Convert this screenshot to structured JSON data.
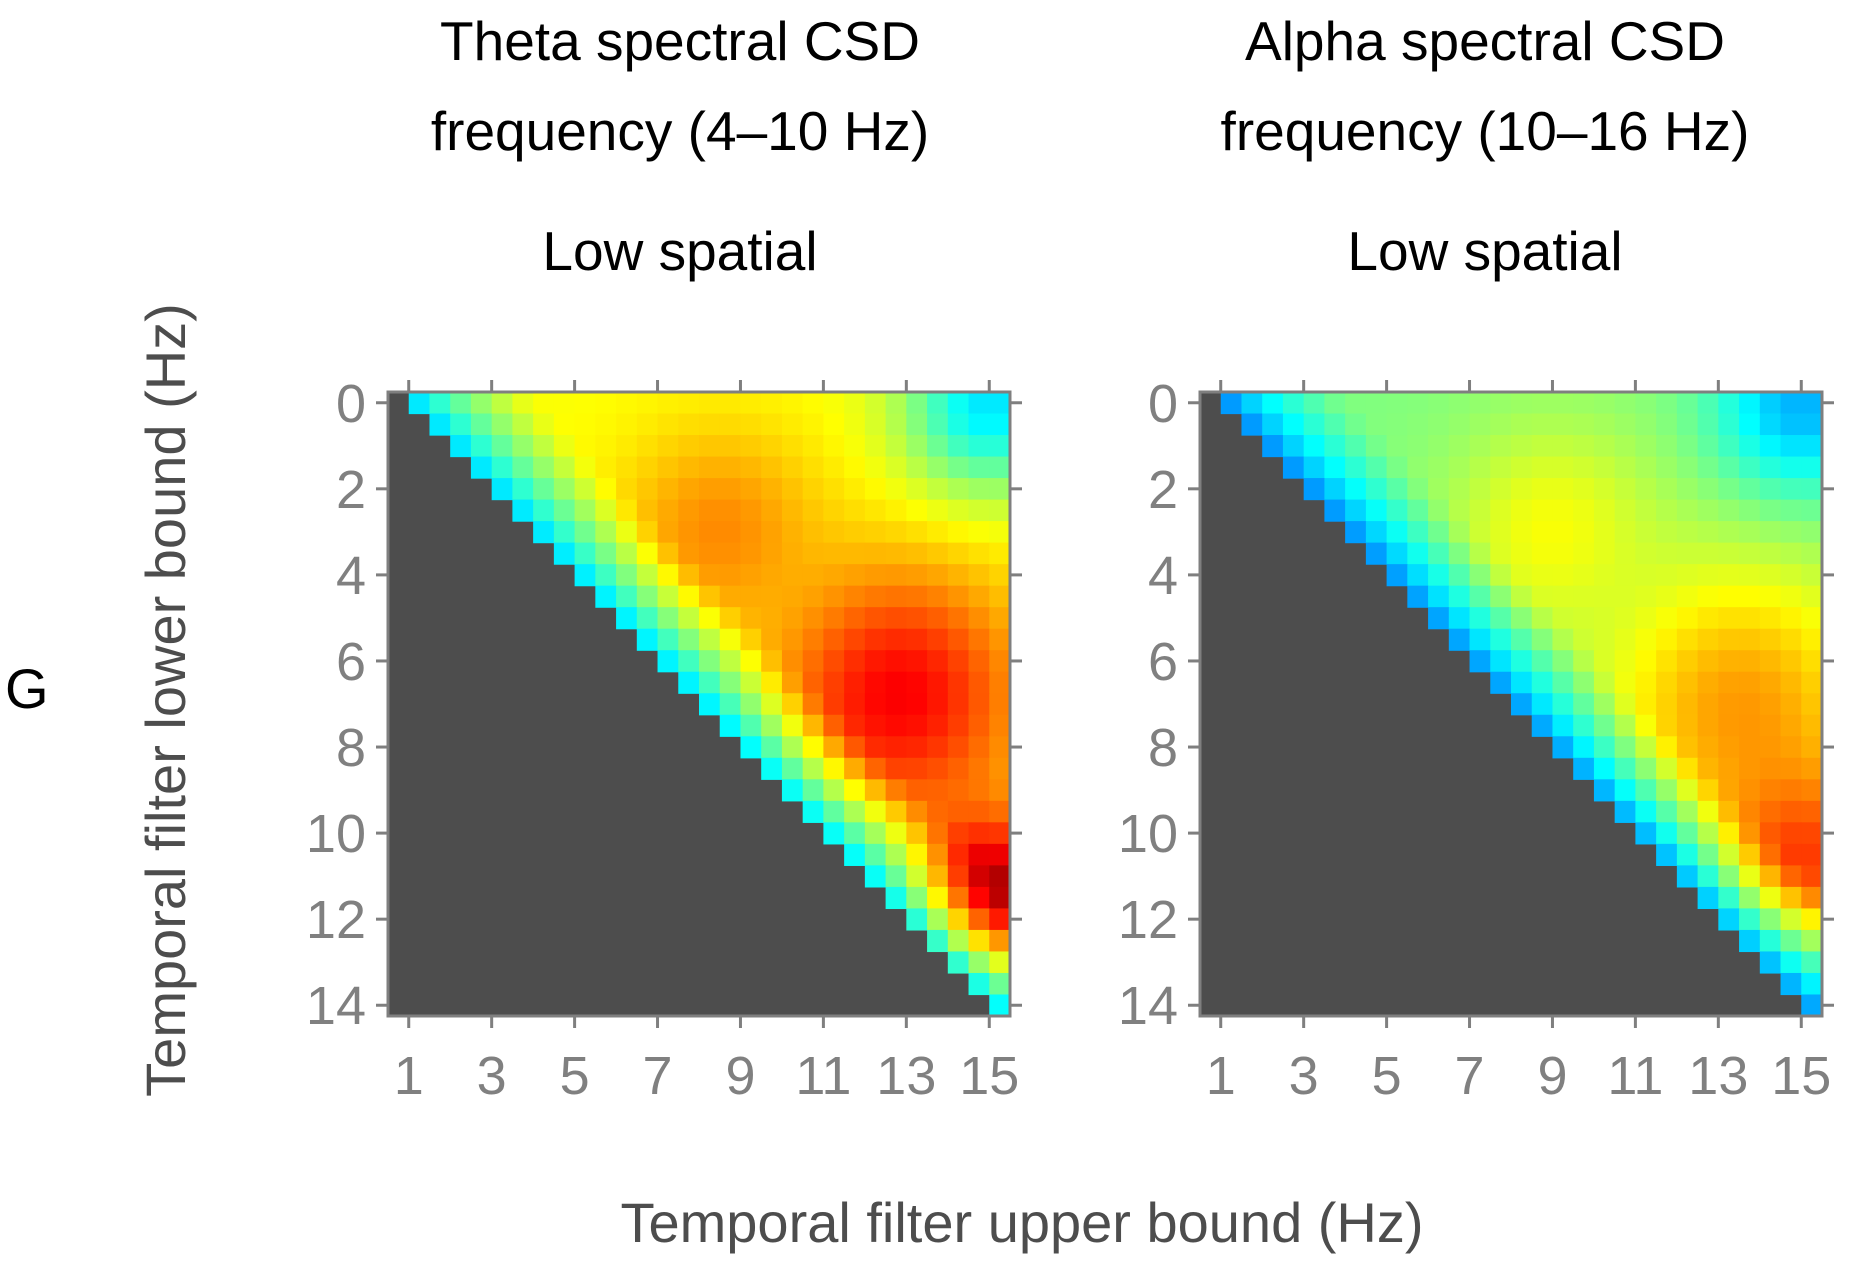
{
  "panel_label": "G",
  "x_axis_label": "Temporal filter upper bound (Hz)",
  "y_axis_label": "Temporal filter lower bound (Hz)",
  "colors": {
    "masked": "#4d4d4d",
    "frame": "#7f7f7f",
    "tick": "#7f7f7f",
    "tick_label": "#808080",
    "colormap": "jet"
  },
  "chart_data": [
    {
      "type": "heatmap",
      "title_lines": [
        "Theta spectral CSD",
        "frequency (4–10 Hz)"
      ],
      "subtitle": "Low spatial",
      "xlabel": "Temporal filter upper bound (Hz)",
      "ylabel": "Temporal filter lower bound (Hz)",
      "x_range": [
        0.5,
        15.5
      ],
      "y_range": [
        -0.25,
        14.25
      ],
      "x_ticks": [
        1,
        3,
        5,
        7,
        9,
        11,
        13,
        15
      ],
      "x_tick_labels": [
        "1",
        "3",
        "5",
        "7",
        "9",
        "11",
        "13",
        "15"
      ],
      "y_ticks": [
        0,
        2,
        4,
        6,
        8,
        10,
        12,
        14
      ],
      "y_tick_labels": [
        "0",
        "2",
        "4",
        "6",
        "8",
        "10",
        "12",
        "14"
      ],
      "cell_size": 0.5,
      "valid_region": "upper > lower",
      "peaks": [
        {
          "x": 12.8,
          "y": 6.8,
          "value": 0.88,
          "spread": 2.1
        },
        {
          "x": 15.0,
          "y": 11.5,
          "value": 0.98,
          "spread": 1.3
        },
        {
          "x": 8.5,
          "y": 3.0,
          "value": 0.74,
          "spread": 1.7
        }
      ],
      "plateau": 0.62,
      "diagonal_ramp": 0.55,
      "top_right_low": 0.35
    },
    {
      "type": "heatmap",
      "title_lines": [
        "Alpha spectral CSD",
        "frequency (10–16 Hz)"
      ],
      "subtitle": "Low spatial",
      "xlabel": "Temporal filter upper bound (Hz)",
      "ylabel": "Temporal filter lower bound (Hz)",
      "x_range": [
        0.5,
        15.5
      ],
      "y_range": [
        -0.25,
        14.25
      ],
      "x_ticks": [
        1,
        3,
        5,
        7,
        9,
        11,
        13,
        15
      ],
      "x_tick_labels": [
        "1",
        "3",
        "5",
        "7",
        "9",
        "11",
        "13",
        "15"
      ],
      "y_ticks": [
        0,
        2,
        4,
        6,
        8,
        10,
        12,
        14
      ],
      "y_tick_labels": [
        "0",
        "2",
        "4",
        "6",
        "8",
        "10",
        "12",
        "14"
      ],
      "cell_size": 0.5,
      "valid_region": "upper > lower",
      "peaks": [
        {
          "x": 13.5,
          "y": 7.0,
          "value": 0.72,
          "spread": 2.4
        },
        {
          "x": 15.0,
          "y": 10.5,
          "value": 0.82,
          "spread": 1.6
        },
        {
          "x": 9.0,
          "y": 3.0,
          "value": 0.62,
          "spread": 1.8
        }
      ],
      "plateau": 0.5,
      "diagonal_ramp": 0.7,
      "top_right_low": 0.3
    }
  ]
}
